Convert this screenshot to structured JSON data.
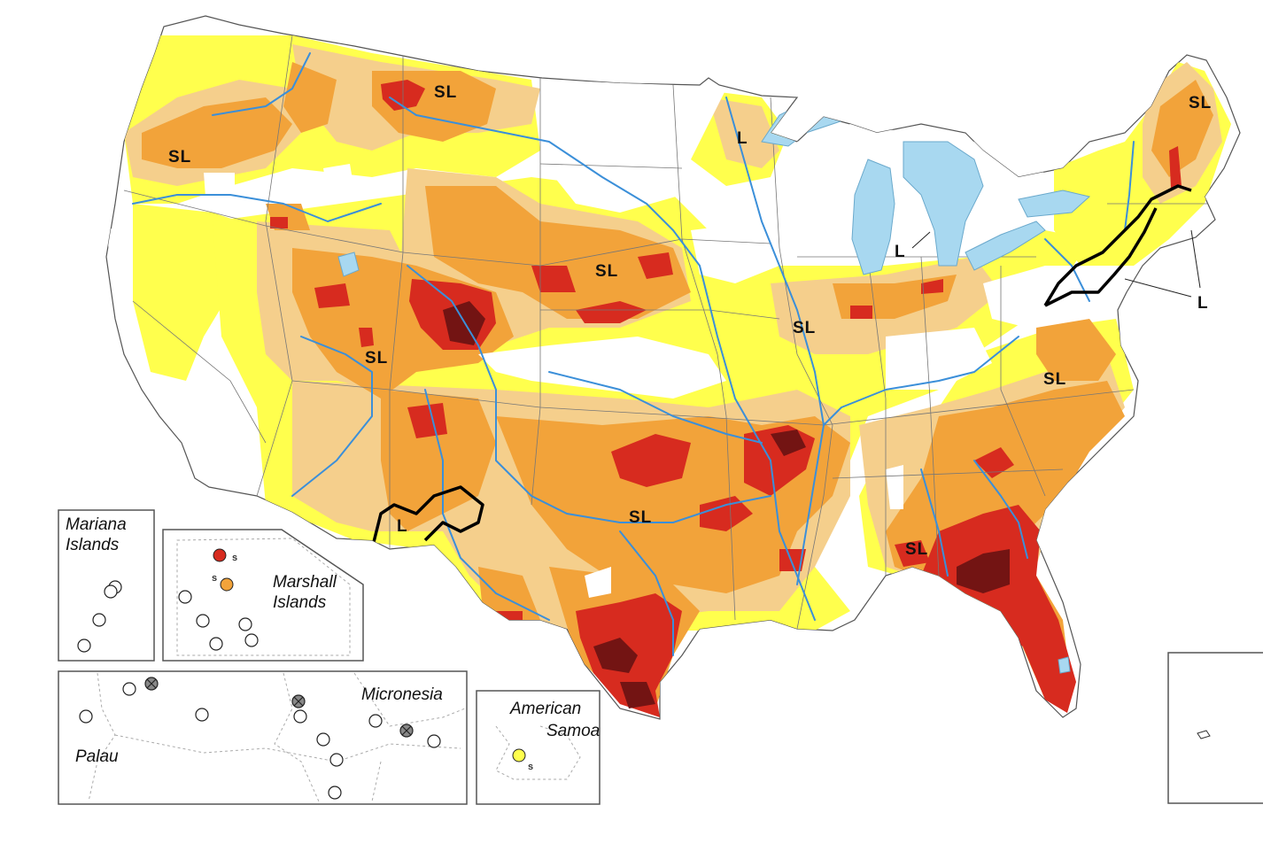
{
  "colors": {
    "D0": "#ffff4d",
    "D1": "#f5cf8c",
    "D2": "#f2a33a",
    "D3": "#d72b1f",
    "D4": "#731413",
    "water": "#a8d8f0",
    "river": "#3b8fd9",
    "none": "#ffffff"
  },
  "impact_labels": {
    "nw": "SL",
    "mt": "SL",
    "mn": "L",
    "me": "SL",
    "mi": "L",
    "ne": "SL",
    "pa": "L",
    "ut": "SL",
    "il": "SL",
    "va": "SL",
    "ok": "SL",
    "nm": "L",
    "ga": "SL"
  },
  "insets": {
    "mariana": {
      "title_line1": "Mariana",
      "title_line2": "Islands"
    },
    "marshall": {
      "title_line1": "Marshall",
      "title_line2": "Islands",
      "s1": "s",
      "s2": "s"
    },
    "micronesia": {
      "title": "Micronesia",
      "palau": "Palau"
    },
    "samoa": {
      "title_line1": "American",
      "title_line2": "Samoa",
      "s": "s"
    }
  }
}
